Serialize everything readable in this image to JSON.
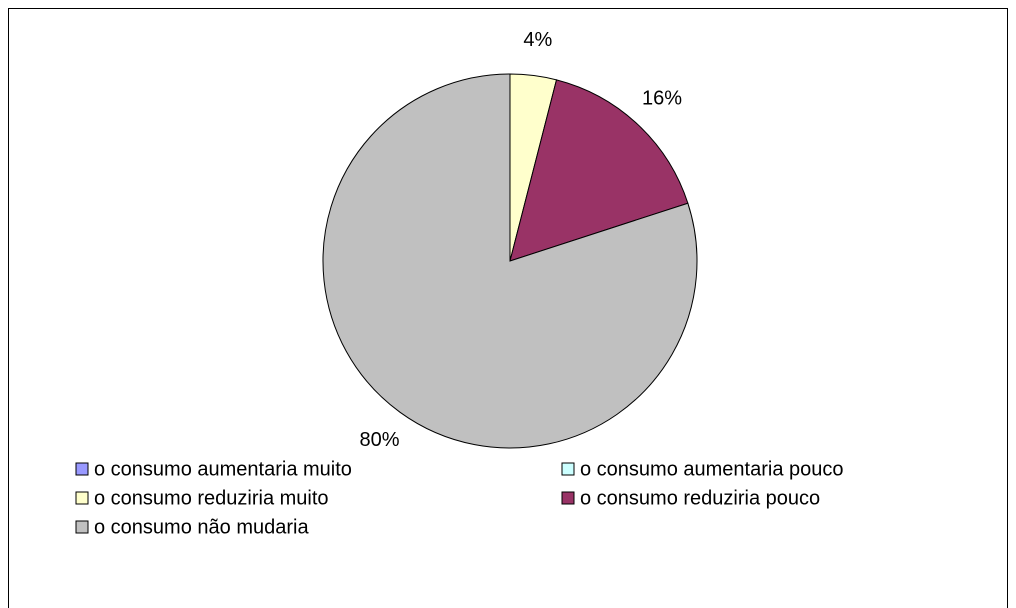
{
  "chart_data": {
    "type": "pie",
    "categories": [
      "o consumo aumentaria muito",
      "o consumo aumentaria pouco",
      "o consumo reduziria muito",
      "o consumo reduziria pouco",
      "o consumo não mudaria"
    ],
    "values": [
      0,
      0,
      4,
      16,
      80
    ],
    "value_labels": [
      null,
      null,
      "4%",
      "16%",
      "80%"
    ],
    "colors": [
      "#9999ff",
      "#ccffff",
      "#ffffcc",
      "#993366",
      "#c0c0c0"
    ],
    "legend": "bottom"
  }
}
